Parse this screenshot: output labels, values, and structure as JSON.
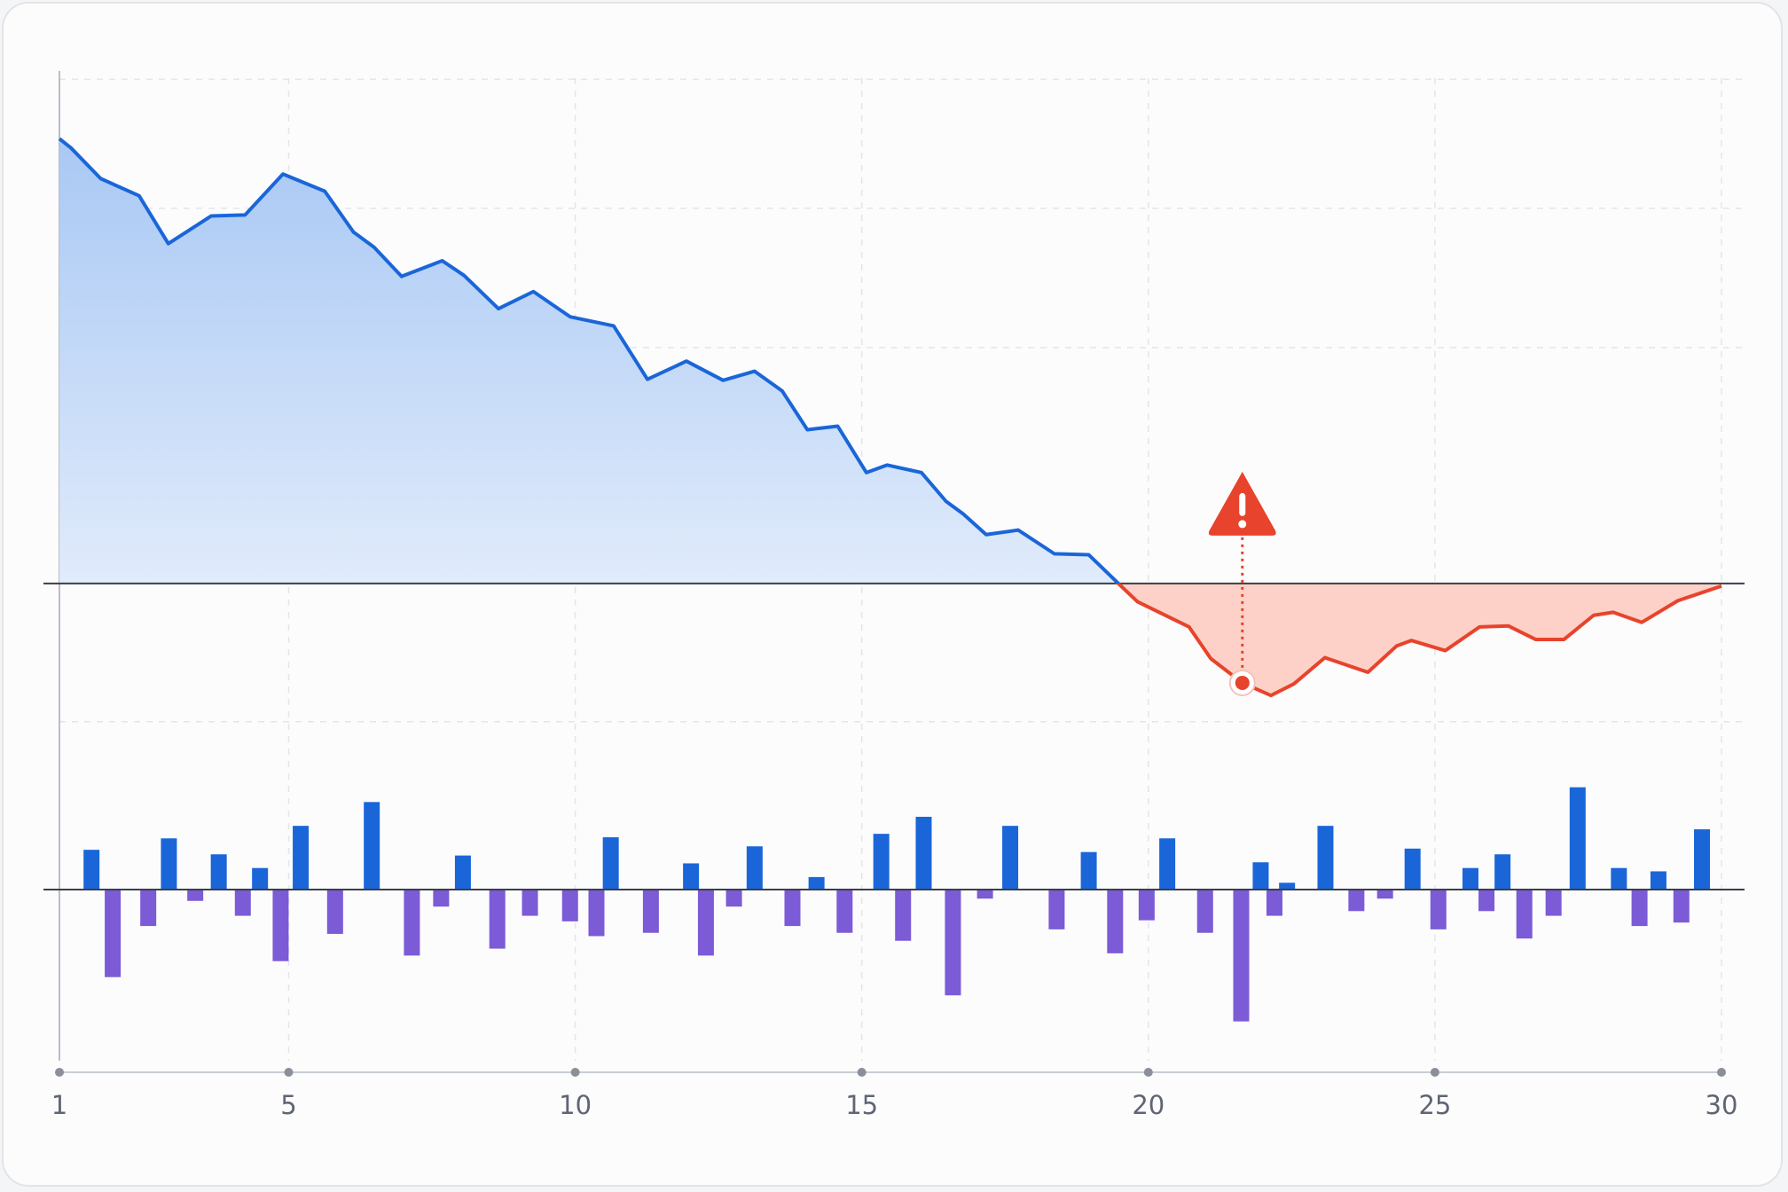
{
  "chart_data": [
    {
      "type": "area",
      "color": "#1a66d9",
      "negative_color": "#e8432c",
      "xlim": [
        1,
        30
      ],
      "xticks": [
        1,
        5,
        10,
        15,
        20,
        25,
        30
      ],
      "ylim": [
        -30,
        102
      ],
      "yticks": [
        -27.4,
        46.8,
        74.4,
        100
      ],
      "grid": true,
      "x": [
        1.0,
        1.2,
        1.72,
        2.39,
        2.9,
        3.65,
        4.24,
        4.9,
        5.63,
        6.13,
        6.49,
        6.97,
        7.68,
        8.06,
        8.66,
        9.27,
        9.91,
        10.67,
        11.26,
        11.94,
        12.58,
        13.13,
        13.61,
        14.05,
        14.58,
        15.08,
        15.44,
        16.04,
        16.47,
        16.77,
        17.17,
        17.73,
        18.36,
        18.96,
        19.56,
        19.81,
        20.71,
        21.09,
        21.64,
        22.14,
        22.54,
        23.08,
        23.83,
        24.33,
        24.59,
        25.18,
        25.78,
        26.28,
        26.76,
        27.25,
        27.77,
        28.11,
        28.61,
        29.24,
        30.0
      ],
      "values": [
        88.2,
        86.4,
        80.3,
        76.9,
        67.4,
        72.9,
        73.1,
        81.2,
        77.8,
        69.7,
        66.7,
        60.9,
        64.0,
        61.1,
        54.5,
        57.9,
        52.9,
        51.1,
        40.5,
        44.1,
        40.3,
        42.1,
        38.2,
        30.5,
        31.2,
        22.0,
        23.5,
        22.0,
        16.3,
        13.8,
        9.7,
        10.6,
        5.9,
        5.7,
        -0.9,
        -3.6,
        -8.6,
        -14.9,
        -19.7,
        -22.2,
        -19.9,
        -14.7,
        -17.6,
        -12.4,
        -11.3,
        -13.3,
        -8.6,
        -8.4,
        -11.1,
        -11.1,
        -6.3,
        -5.7,
        -7.7,
        -3.4,
        -0.5
      ],
      "alert": {
        "x": 21.64,
        "value": -19.7
      }
    },
    {
      "type": "bar",
      "xlim": [
        1,
        30
      ],
      "ylim": [
        -110,
        90
      ],
      "series": [
        {
          "color": "#1a66d9",
          "x": [
            1.56,
            2.91,
            3.78,
            4.5,
            5.21,
            6.45,
            8.04,
            10.62,
            12.02,
            13.13,
            14.21,
            15.34,
            16.08,
            17.59,
            18.96,
            20.33,
            21.96,
            22.42,
            23.09,
            24.61,
            25.62,
            26.18,
            27.49,
            28.21,
            28.9,
            29.66
          ],
          "values": [
            29.9,
            38.5,
            26.5,
            16.2,
            47.9,
            65.8,
            25.6,
            39.3,
            19.7,
            32.5,
            9.4,
            41.9,
            54.7,
            47.9,
            28.2,
            38.5,
            20.5,
            5.1,
            47.9,
            30.8,
            16.2,
            26.5,
            76.9,
            16.2,
            13.7,
            45.3
          ]
        },
        {
          "color": "#7b5bd6",
          "x": [
            1.93,
            2.55,
            3.37,
            4.2,
            4.86,
            5.81,
            7.15,
            7.66,
            8.64,
            9.21,
            9.91,
            10.37,
            11.32,
            12.28,
            12.77,
            13.79,
            14.7,
            15.72,
            16.59,
            17.15,
            18.4,
            19.42,
            19.97,
            20.99,
            21.62,
            22.2,
            23.63,
            24.13,
            25.06,
            25.9,
            26.56,
            27.07,
            28.57,
            29.3
          ],
          "values": [
            -65.8,
            -27.4,
            -8.5,
            -19.7,
            -53.8,
            -33.3,
            -49.6,
            -12.8,
            -44.4,
            -19.7,
            -23.9,
            -35.0,
            -32.5,
            -49.6,
            -12.8,
            -27.4,
            -32.5,
            -38.5,
            -79.5,
            -6.8,
            -29.9,
            -47.9,
            -23.1,
            -32.5,
            -99.1,
            -19.7,
            -16.2,
            -6.8,
            -29.9,
            -16.2,
            -36.8,
            -19.7,
            -27.4,
            -24.8
          ]
        }
      ]
    }
  ]
}
